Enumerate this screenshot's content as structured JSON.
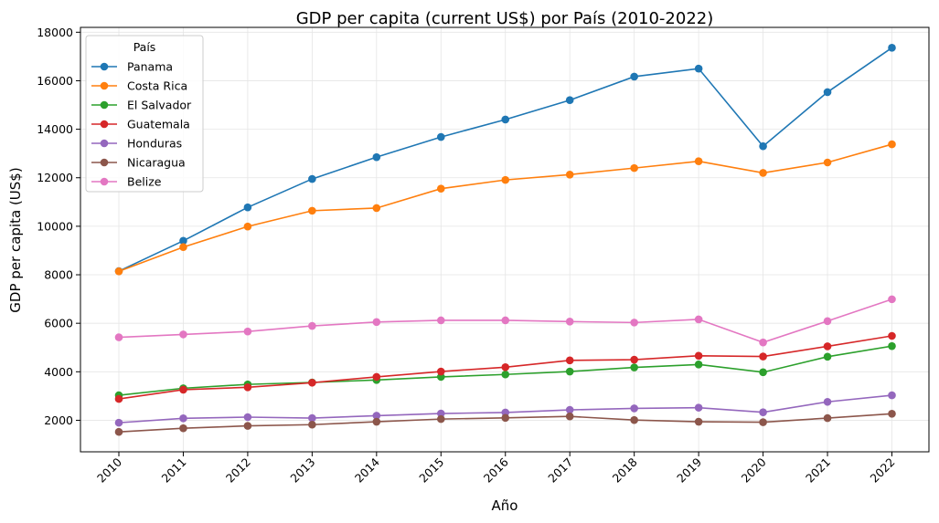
{
  "chart_data": {
    "type": "line",
    "title": "GDP per capita (current US$) por País (2010-2022)",
    "xlabel": "Año",
    "ylabel": "GDP per capita (US$)",
    "x": [
      "2010",
      "2011",
      "2012",
      "2013",
      "2014",
      "2015",
      "2016",
      "2017",
      "2018",
      "2019",
      "2020",
      "2021",
      "2022"
    ],
    "y_ticks": [
      "2000",
      "4000",
      "6000",
      "8000",
      "10000",
      "12000",
      "14000",
      "16000",
      "18000"
    ],
    "ylim": [
      700,
      18200
    ],
    "grid": true,
    "legend": {
      "title": "País",
      "placement": "top-left"
    },
    "series": [
      {
        "name": "Panama",
        "color": "#1f77b4",
        "values": [
          8150,
          9400,
          10780,
          11950,
          12850,
          13680,
          14400,
          15200,
          16170,
          16500,
          13300,
          15530,
          17360
        ]
      },
      {
        "name": "Costa Rica",
        "color": "#ff7f0e",
        "values": [
          8140,
          9140,
          9990,
          10640,
          10750,
          11550,
          11910,
          12130,
          12400,
          12680,
          12200,
          12630,
          13380
        ]
      },
      {
        "name": "El Salvador",
        "color": "#2ca02c",
        "values": [
          3030,
          3320,
          3480,
          3560,
          3660,
          3790,
          3890,
          4010,
          4180,
          4300,
          3980,
          4620,
          5060
        ]
      },
      {
        "name": "Guatemala",
        "color": "#d62728",
        "values": [
          2880,
          3260,
          3360,
          3550,
          3790,
          4010,
          4190,
          4470,
          4500,
          4660,
          4630,
          5050,
          5480
        ]
      },
      {
        "name": "Honduras",
        "color": "#9467bd",
        "values": [
          1900,
          2080,
          2130,
          2090,
          2190,
          2280,
          2320,
          2430,
          2490,
          2520,
          2330,
          2760,
          3030
        ]
      },
      {
        "name": "Nicaragua",
        "color": "#8c564b",
        "values": [
          1520,
          1670,
          1770,
          1820,
          1940,
          2050,
          2100,
          2160,
          2010,
          1940,
          1920,
          2090,
          2270
        ]
      },
      {
        "name": "Belize",
        "color": "#e377c2",
        "values": [
          5420,
          5540,
          5660,
          5890,
          6050,
          6120,
          6120,
          6070,
          6030,
          6160,
          5210,
          6090,
          6990
        ]
      }
    ]
  }
}
